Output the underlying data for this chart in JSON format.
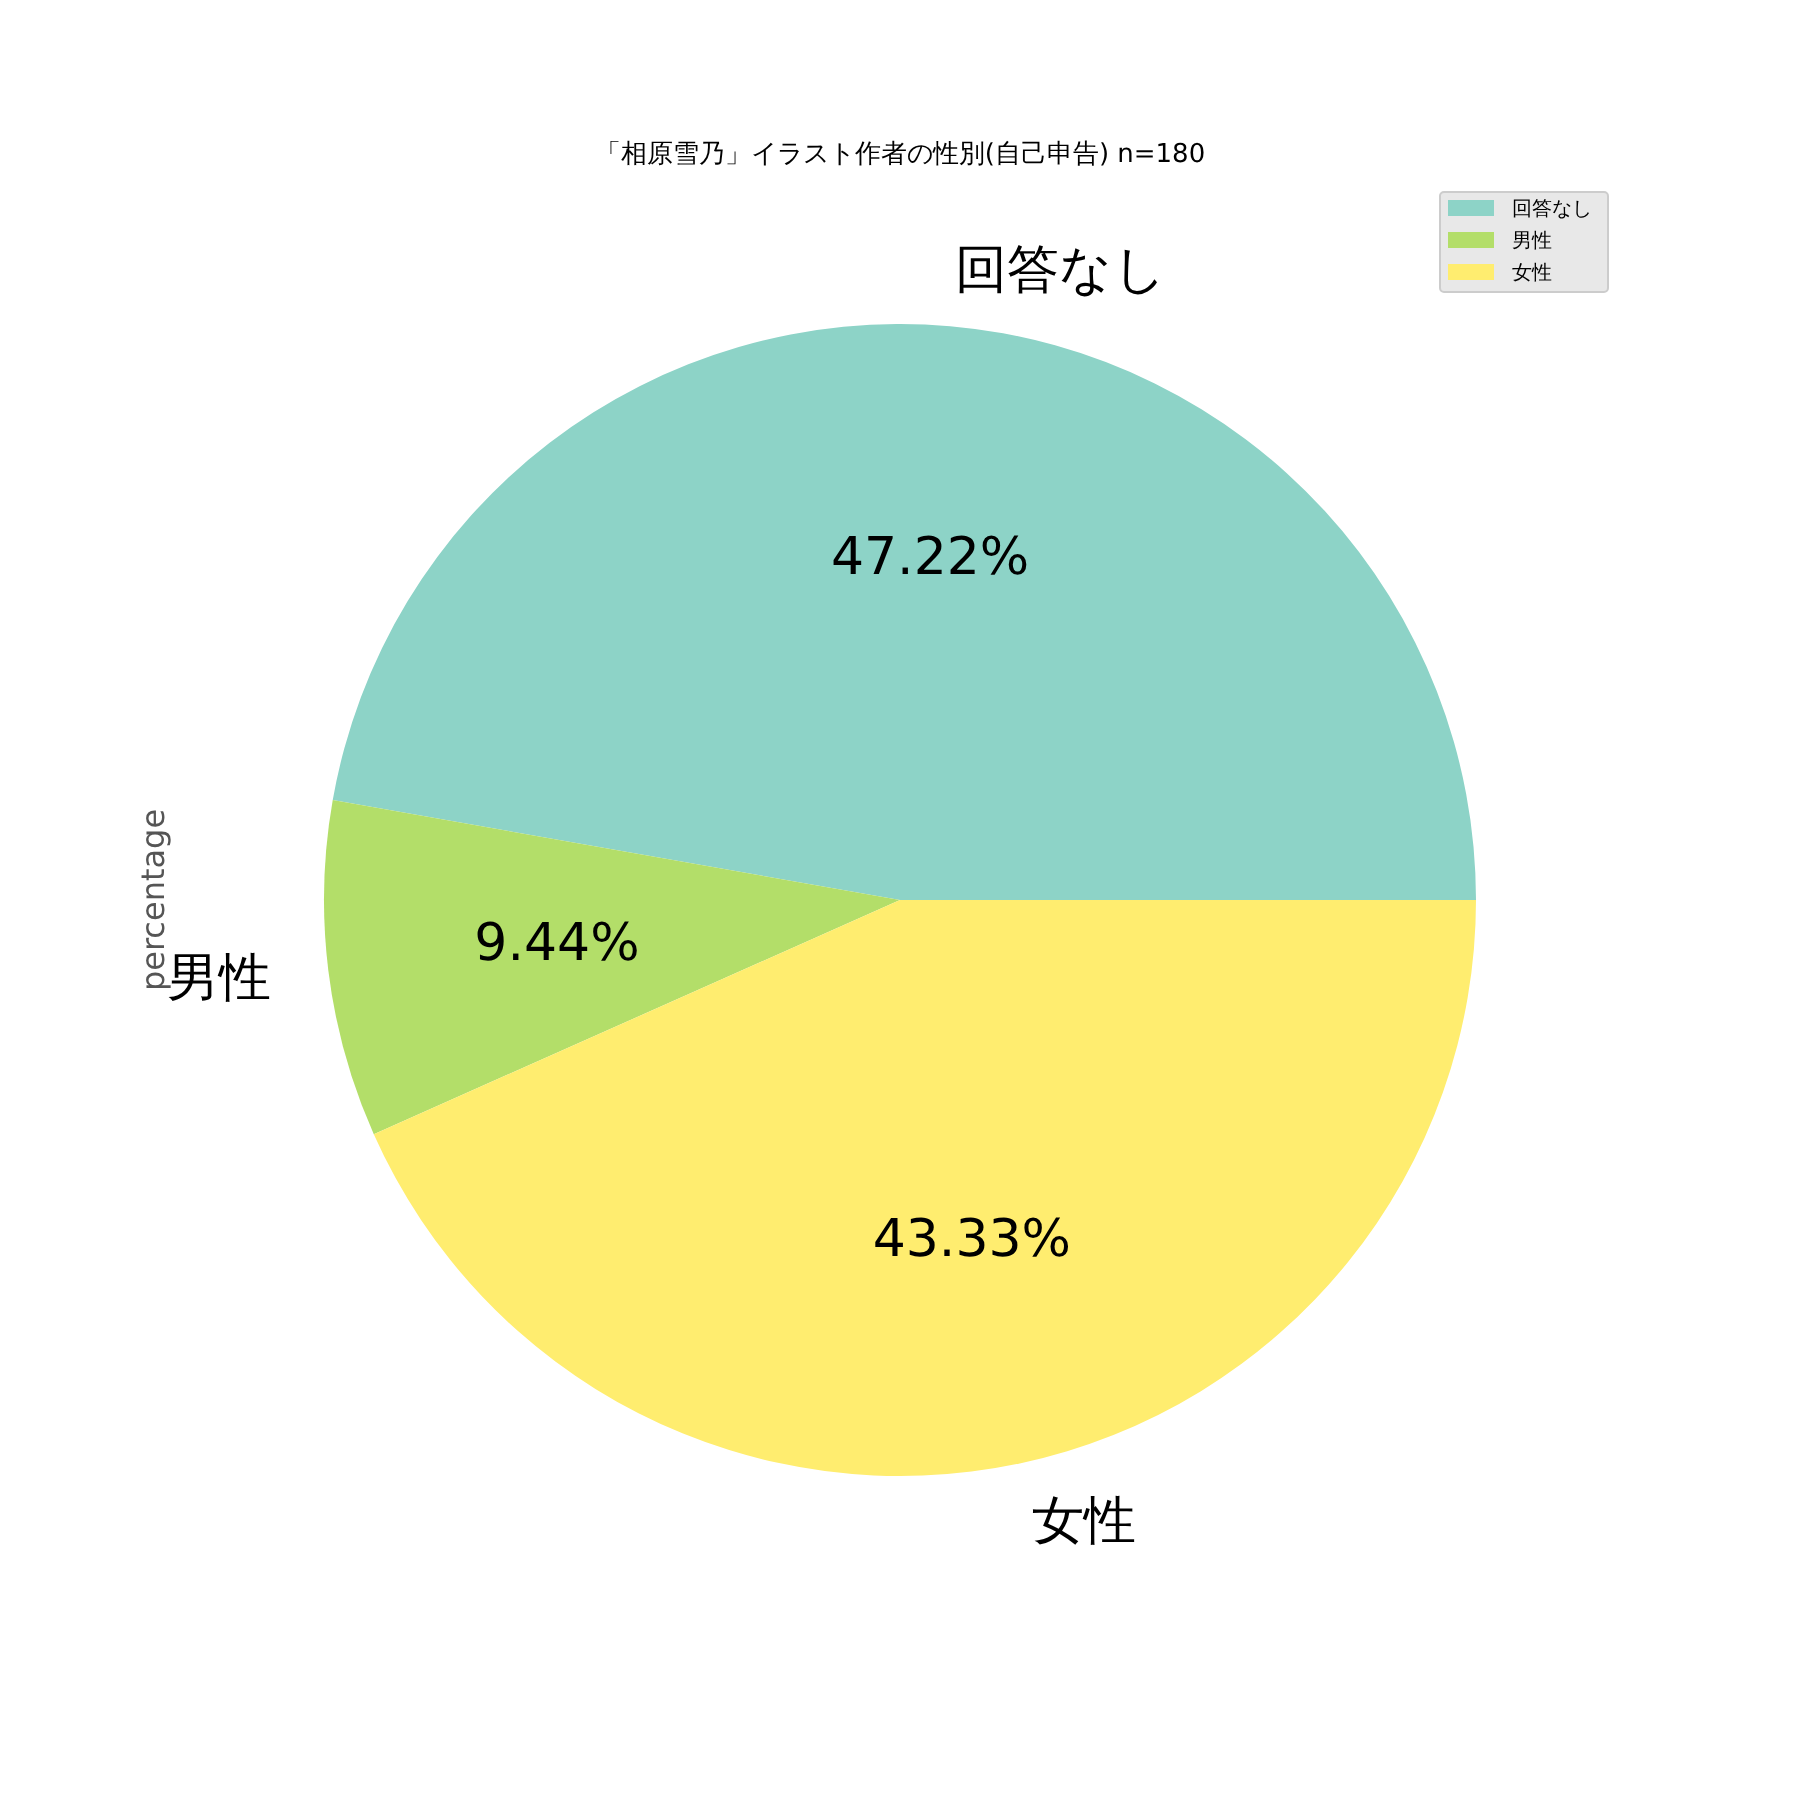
{
  "chart_data": {
    "type": "pie",
    "title": "「相原雪乃」イラスト作者の性別(自己申告) n=180",
    "ylabel": "percentage",
    "categories": [
      "回答なし",
      "男性",
      "女性"
    ],
    "values": [
      47.22,
      9.44,
      43.33
    ],
    "value_labels": [
      "47.22%",
      "9.44%",
      "43.33%"
    ],
    "colors": [
      "#8dd3c7",
      "#b3de69",
      "#ffed6f"
    ],
    "legend": "top right"
  }
}
